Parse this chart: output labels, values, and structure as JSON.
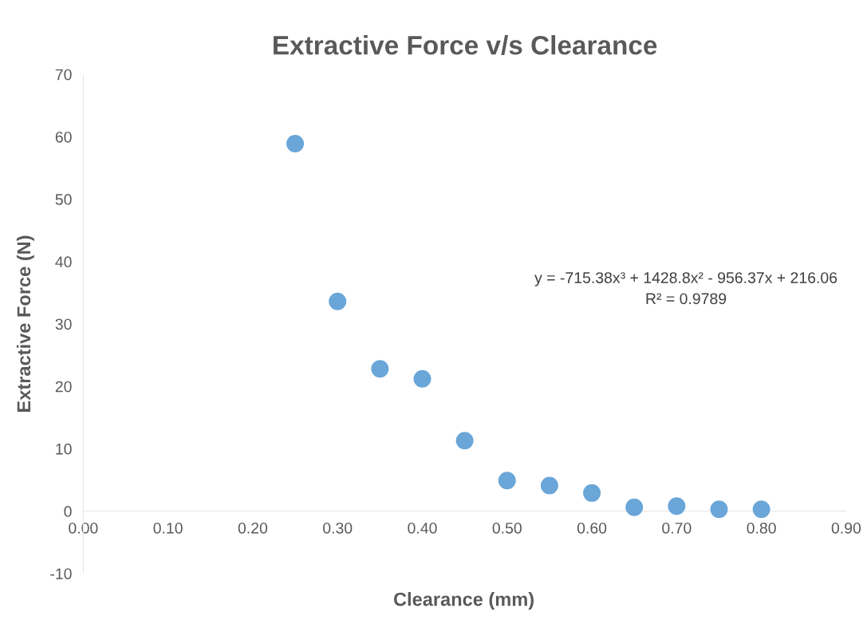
{
  "chart_data": {
    "type": "scatter",
    "title": "Extractive Force v/s Clearance",
    "xlabel": "Clearance (mm)",
    "ylabel": "Extractive Force (N)",
    "x": [
      0.25,
      0.3,
      0.35,
      0.4,
      0.45,
      0.5,
      0.55,
      0.6,
      0.65,
      0.7,
      0.75,
      0.8
    ],
    "series": [
      {
        "color": "#6aa6d8",
        "values": [
          58.9,
          33.6,
          22.8,
          21.2,
          11.3,
          4.9,
          4.1,
          2.9,
          0.6,
          0.8,
          0.3,
          0.3
        ]
      }
    ],
    "xlim": [
      0,
      0.9
    ],
    "xticks": [
      {
        "value": 0,
        "label": "0.00"
      },
      {
        "value": 0.1,
        "label": "0.10"
      },
      {
        "value": 0.2,
        "label": "0.20"
      },
      {
        "value": 0.3,
        "label": "0.30"
      },
      {
        "value": 0.4,
        "label": "0.40"
      },
      {
        "value": 0.5,
        "label": "0.50"
      },
      {
        "value": 0.6,
        "label": "0.60"
      },
      {
        "value": 0.7,
        "label": "0.70"
      },
      {
        "value": 0.8,
        "label": "0.80"
      },
      {
        "value": 0.9,
        "label": "0.90"
      }
    ],
    "ylim": [
      -10,
      70
    ],
    "yticks": [
      -10,
      0,
      10,
      20,
      30,
      40,
      50,
      60,
      70
    ],
    "marker": "circle",
    "grid": false,
    "legend": false,
    "annotations": [
      "y = -715.38x³ + 1428.8x² - 956.37x + 216.06",
      "R² = 0.9789"
    ]
  }
}
